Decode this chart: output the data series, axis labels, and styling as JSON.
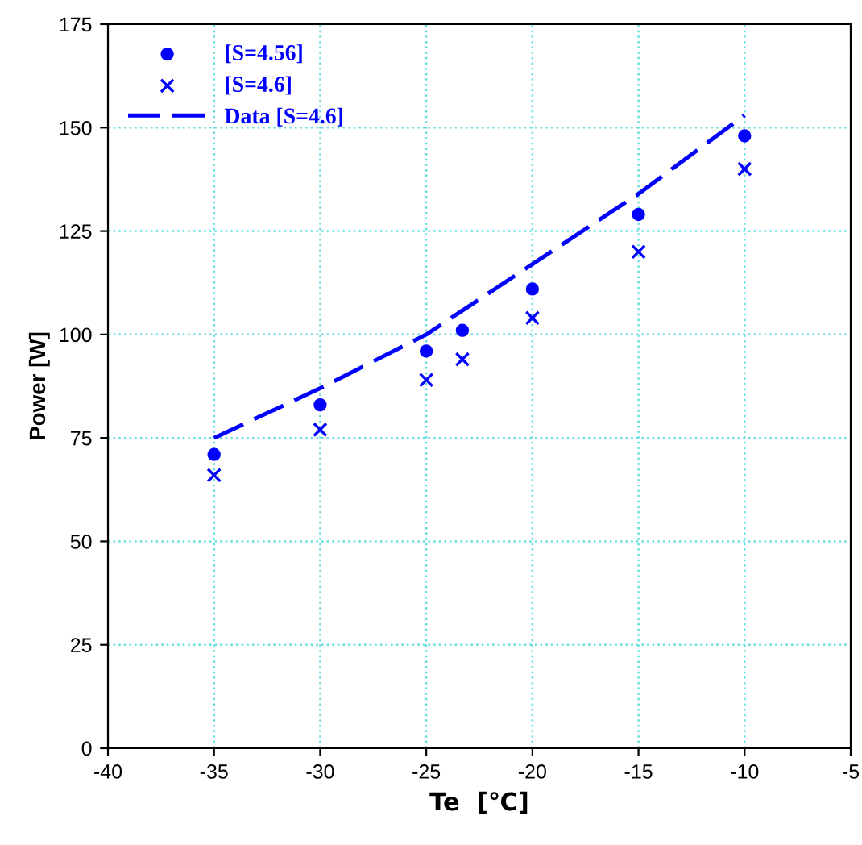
{
  "chart_data": {
    "type": "scatter",
    "xlabel": "Te  [℃]",
    "ylabel": "Power [W]",
    "xlim": [
      -40,
      -5
    ],
    "xticks": [
      -40,
      -35,
      -30,
      -25,
      -20,
      -15,
      -10,
      -5
    ],
    "ylim": [
      0,
      175
    ],
    "yticks": [
      0,
      25,
      50,
      75,
      100,
      125,
      150,
      175
    ],
    "grid": true,
    "legend": "top left",
    "series": [
      {
        "name": "[S=4.56]",
        "marker": "circle",
        "color": "#0000ff",
        "x": [
          -35,
          -30,
          -25,
          -23.3,
          -20,
          -15,
          -10
        ],
        "values": [
          71,
          83,
          96,
          101,
          111,
          129,
          148
        ]
      },
      {
        "name": "[S=4.6]",
        "marker": "cross",
        "color": "#0000ff",
        "x": [
          -35,
          -30,
          -25,
          -23.3,
          -20,
          -15,
          -10
        ],
        "values": [
          66,
          77,
          89,
          94,
          104,
          120,
          140
        ]
      },
      {
        "name": "Data [S=4.6]",
        "type": "line",
        "line_style": "dashed",
        "color": "#0000ff",
        "x": [
          -35,
          -30,
          -25,
          -20,
          -15,
          -10
        ],
        "values": [
          75,
          87,
          100,
          117,
          134,
          153
        ]
      }
    ]
  }
}
